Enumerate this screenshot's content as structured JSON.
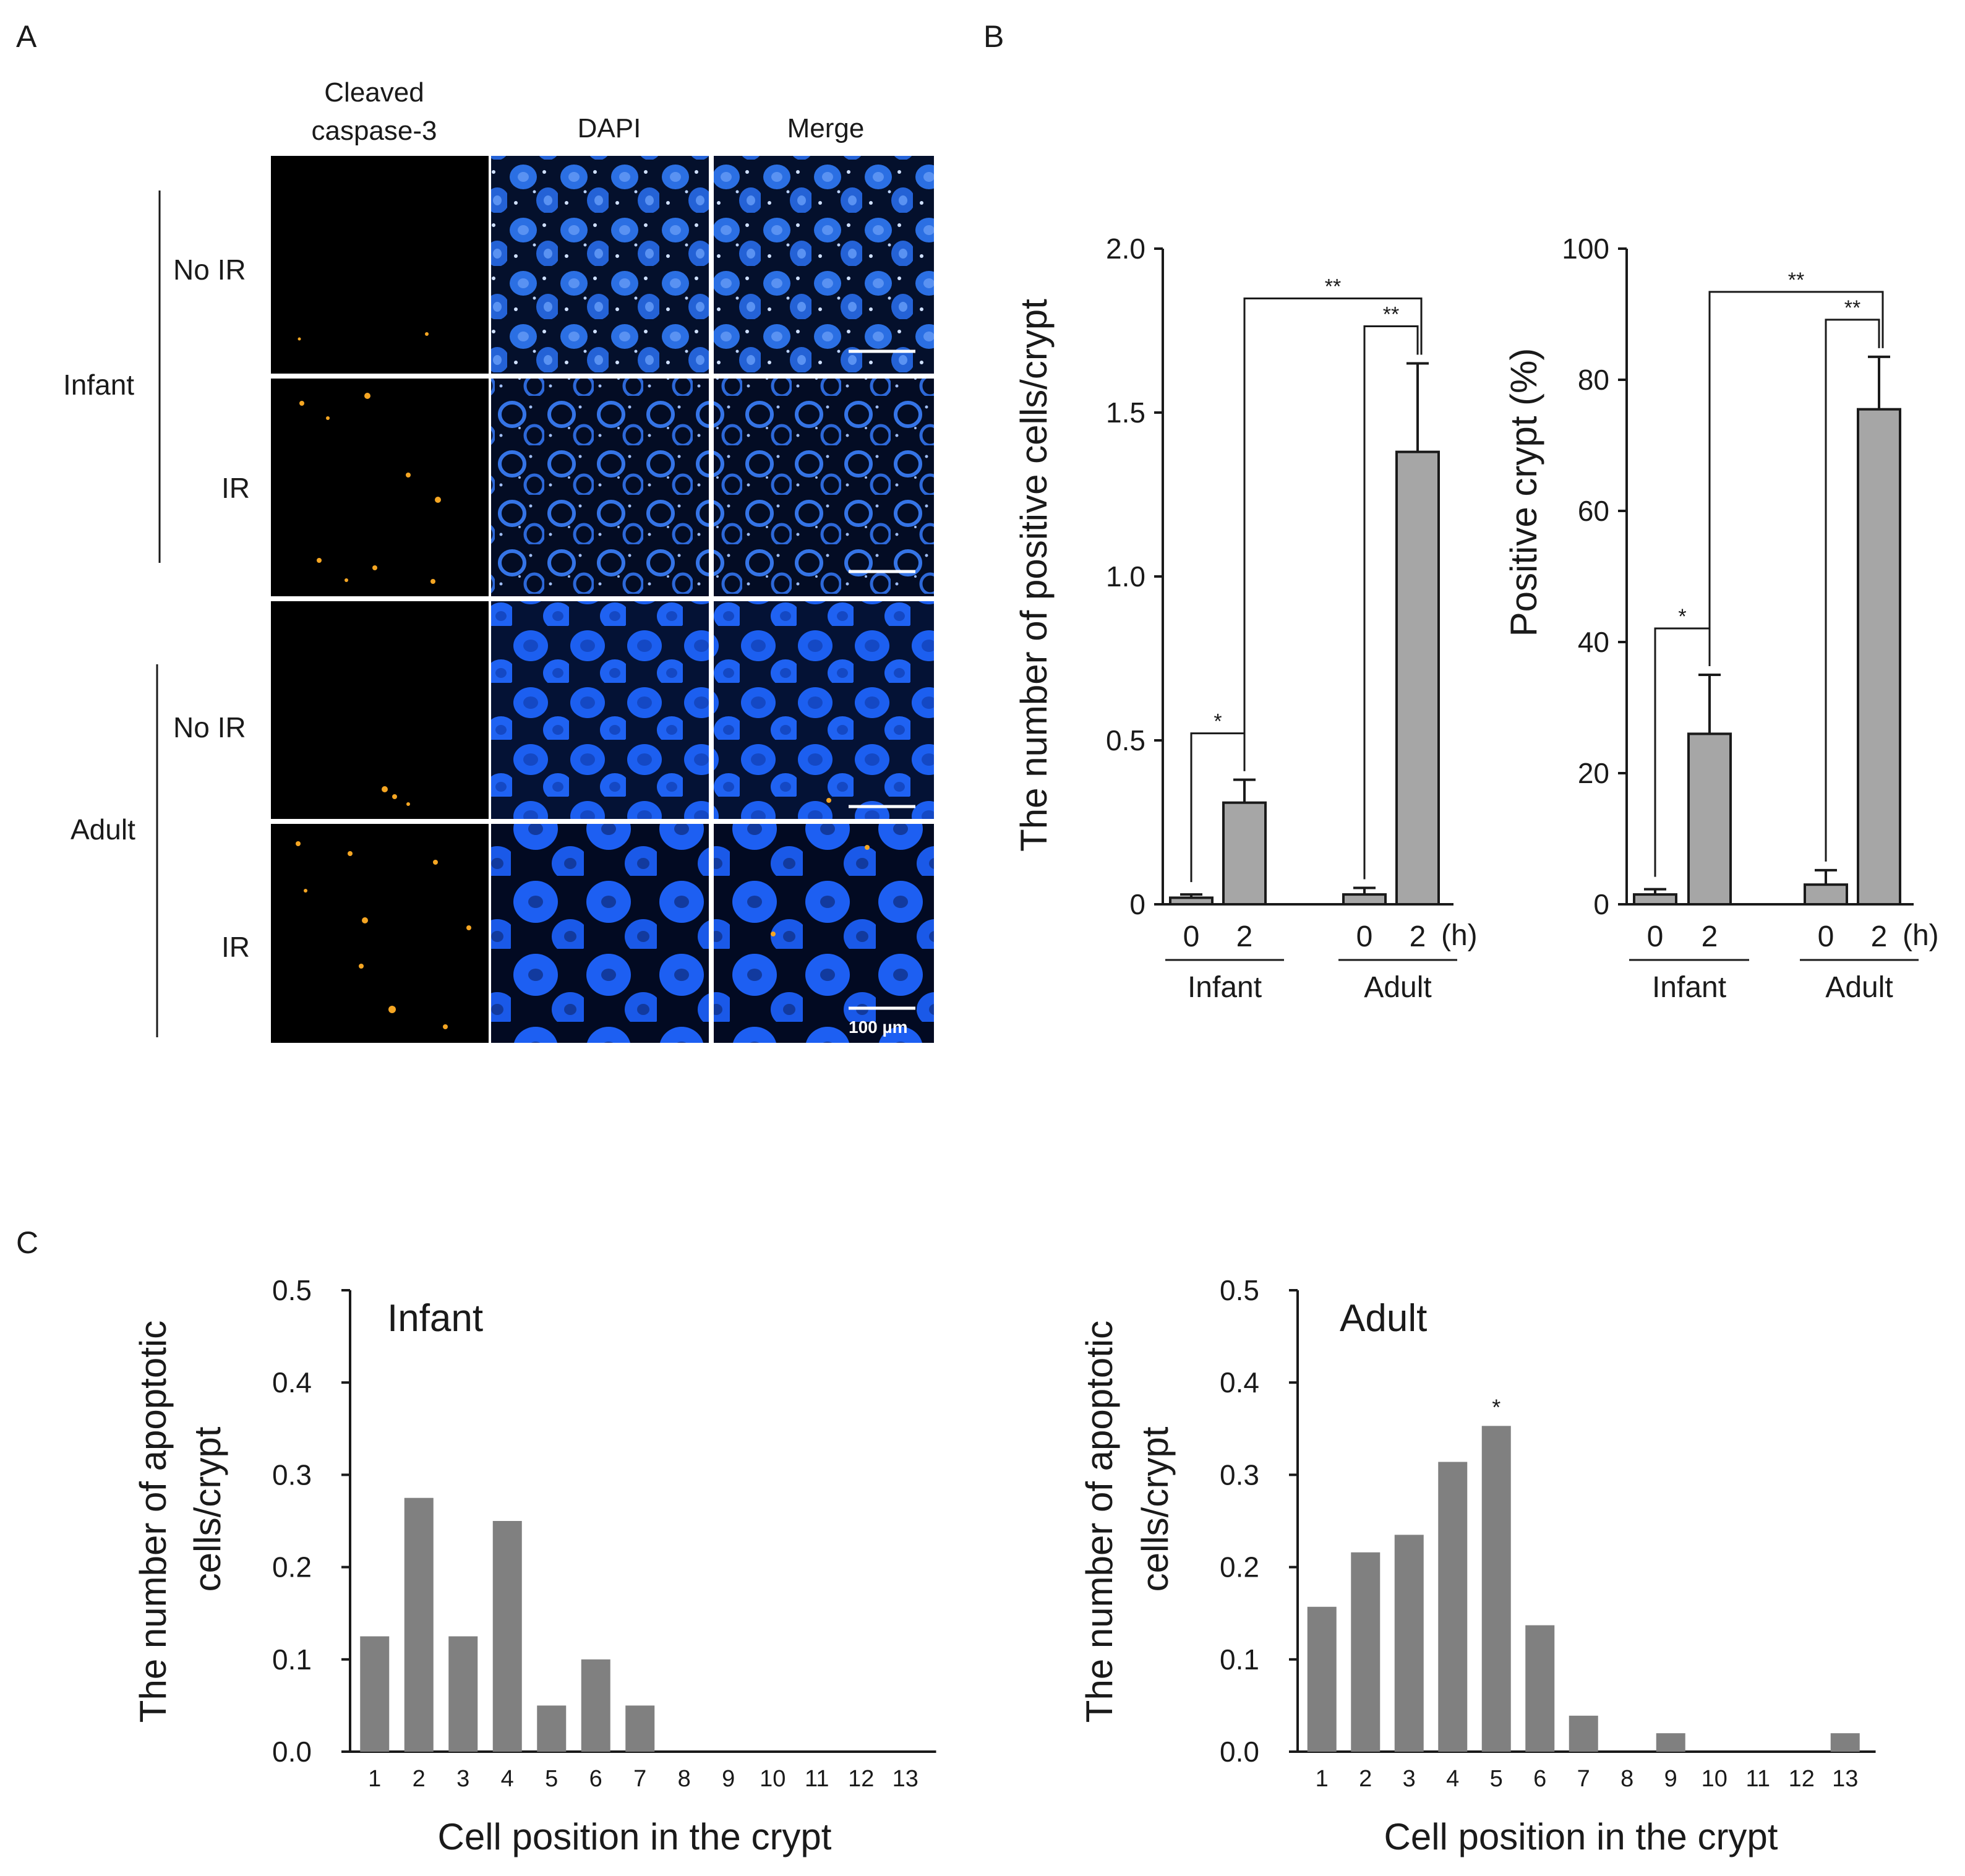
{
  "panels": {
    "a": "A",
    "b": "B",
    "c": "C"
  },
  "micrograph": {
    "columns": [
      "Cleaved",
      "caspase-3",
      "DAPI",
      "Merge"
    ],
    "groups": [
      "Infant",
      "Adult"
    ],
    "rows": [
      "No IR",
      "IR",
      "No IR",
      "IR"
    ],
    "scale_bar": "100 µm",
    "colors": {
      "caspase_signal": "#f5a623",
      "dapi_signal": "#1f63e6",
      "background": "#000000"
    }
  },
  "chart_data": [
    {
      "type": "bar",
      "panel": "B",
      "ylabel": "The number of positive cells/crypt",
      "ylim": [
        0,
        2.0
      ],
      "yticks": [
        "0",
        "0.5",
        "1.0",
        "1.5",
        "2.0"
      ],
      "unit_label": "(h)",
      "groups": [
        "Infant",
        "Adult"
      ],
      "categories": [
        "0",
        "2",
        "0",
        "2"
      ],
      "values": [
        0.02,
        0.31,
        0.03,
        1.38
      ],
      "errors": [
        0.01,
        0.07,
        0.02,
        0.27
      ],
      "significance": [
        {
          "from": 0,
          "to": 1,
          "label": "*"
        },
        {
          "from": 2,
          "to": 3,
          "label": "**"
        },
        {
          "from": 1,
          "to": 3,
          "label": "**"
        }
      ],
      "bar_color": "#a6a6a6"
    },
    {
      "type": "bar",
      "panel": "B",
      "ylabel": "Positive crypt (%)",
      "ylim": [
        0,
        100
      ],
      "yticks": [
        "0",
        "20",
        "40",
        "60",
        "80",
        "100"
      ],
      "unit_label": "(h)",
      "groups": [
        "Infant",
        "Adult"
      ],
      "categories": [
        "0",
        "2",
        "0",
        "2"
      ],
      "values": [
        1.5,
        26,
        3,
        75.5
      ],
      "errors": [
        0.8,
        9,
        2.2,
        8
      ],
      "significance": [
        {
          "from": 0,
          "to": 1,
          "label": "*"
        },
        {
          "from": 2,
          "to": 3,
          "label": "**"
        },
        {
          "from": 1,
          "to": 3,
          "label": "**"
        }
      ],
      "bar_color": "#a6a6a6"
    },
    {
      "type": "bar",
      "panel": "C",
      "title": "Infant",
      "xlabel": "Cell position in the crypt",
      "ylabel": [
        "The number of apoptotic",
        "cells/crypt"
      ],
      "ylim": [
        0,
        0.5
      ],
      "yticks": [
        "0.0",
        "0.1",
        "0.2",
        "0.3",
        "0.4",
        "0.5"
      ],
      "categories": [
        "1",
        "2",
        "3",
        "4",
        "5",
        "6",
        "7",
        "8",
        "9",
        "10",
        "11",
        "12",
        "13"
      ],
      "values": [
        0.125,
        0.275,
        0.125,
        0.25,
        0.05,
        0.1,
        0.05,
        0,
        0,
        0,
        0,
        0,
        0
      ],
      "bar_color": "#808080"
    },
    {
      "type": "bar",
      "panel": "C",
      "title": "Adult",
      "xlabel": "Cell position in the crypt",
      "ylabel": [
        "The number of apoptotic",
        "cells/crypt"
      ],
      "ylim": [
        0,
        0.5
      ],
      "yticks": [
        "0.0",
        "0.1",
        "0.2",
        "0.3",
        "0.4",
        "0.5"
      ],
      "categories": [
        "1",
        "2",
        "3",
        "4",
        "5",
        "6",
        "7",
        "8",
        "9",
        "10",
        "11",
        "12",
        "13"
      ],
      "values": [
        0.157,
        0.216,
        0.235,
        0.314,
        0.353,
        0.137,
        0.039,
        0,
        0.02,
        0,
        0,
        0,
        0.02
      ],
      "annotations": [
        {
          "index": 4,
          "label": "*"
        }
      ],
      "bar_color": "#808080"
    }
  ]
}
